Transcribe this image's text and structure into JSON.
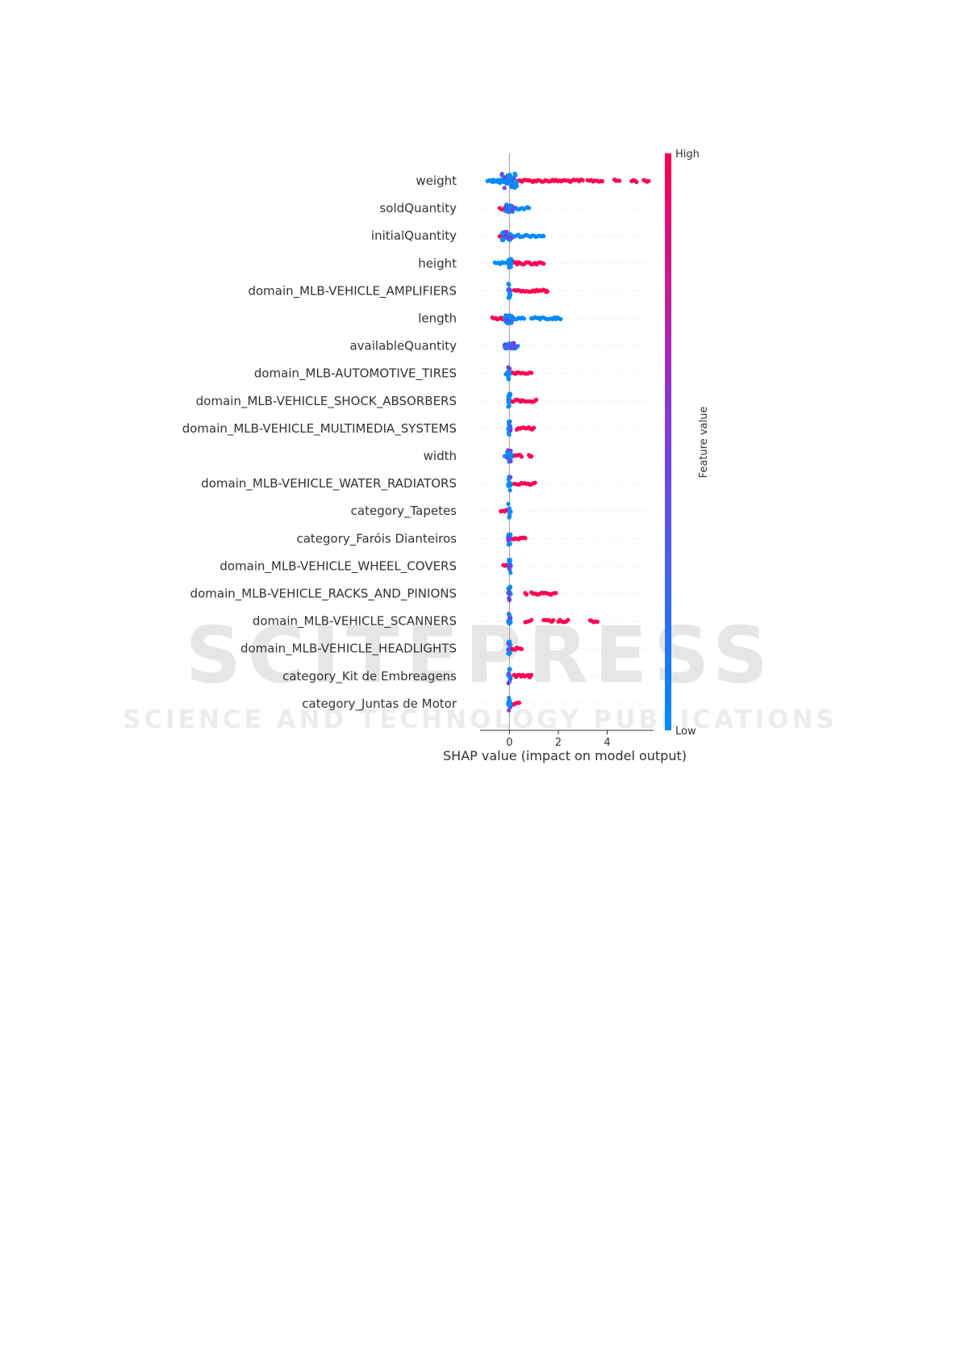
{
  "watermark": {
    "line1": "SCITEPRESS",
    "line2": "SCIENCE AND TECHNOLOGY PUBLICATIONS"
  },
  "colors": {
    "high": "#ff0052",
    "low": "#008bfb",
    "mid": "#7a3fe0",
    "zero_line": "#999999",
    "guide_line": "#e0e0e0",
    "text": "#333333"
  },
  "chart_data": {
    "type": "scatter",
    "subtype": "shap-beeswarm-summary",
    "xlabel": "SHAP value (impact on model output)",
    "xlim": [
      -1.2,
      5.9
    ],
    "xticks": [
      0,
      2,
      4
    ],
    "colorbar": {
      "label": "Feature value",
      "high_label": "High",
      "low_label": "Low"
    },
    "features": [
      {
        "name": "weight",
        "low": [
          [
            -0.9,
            0.1
          ],
          [
            -0.7,
            0.1
          ]
        ],
        "dense": [
          [
            -0.4,
            0.3,
            1.0
          ]
        ],
        "high": [
          [
            0.3,
            3.0
          ],
          [
            3.2,
            3.5
          ],
          [
            3.6,
            3.8
          ],
          [
            4.3,
            4.5
          ],
          [
            5.0,
            5.2
          ],
          [
            5.5,
            5.7
          ]
        ]
      },
      {
        "name": "soldQuantity",
        "low": [
          [
            -0.1,
            0.6
          ],
          [
            0.7,
            0.8
          ]
        ],
        "dense": [
          [
            -0.2,
            0.15,
            0.6
          ]
        ],
        "high": [
          [
            -0.4,
            -0.1
          ]
        ]
      },
      {
        "name": "initialQuantity",
        "low": [
          [
            0.0,
            1.3
          ],
          [
            1.35,
            1.4
          ]
        ],
        "dense": [
          [
            -0.3,
            0.1,
            0.6
          ]
        ],
        "high": [
          [
            -0.4,
            -0.1
          ]
        ]
      },
      {
        "name": "height",
        "low": [
          [
            -0.6,
            0.0
          ]
        ],
        "dense": [
          [
            -0.1,
            0.1,
            0.6
          ]
        ],
        "high": [
          [
            0.1,
            1.4
          ]
        ]
      },
      {
        "name": "domain_MLB-VEHICLE_AMPLIFIERS",
        "low": [
          [
            -0.05,
            0.05
          ]
        ],
        "dense": [
          [
            -0.05,
            0.05,
            1.0
          ]
        ],
        "high": [
          [
            0.2,
            1.4
          ],
          [
            1.5,
            1.55
          ]
        ]
      },
      {
        "name": "length",
        "low": [
          [
            0.0,
            0.6
          ],
          [
            0.9,
            1.6
          ],
          [
            1.7,
            2.1
          ]
        ],
        "dense": [
          [
            -0.2,
            0.1,
            0.7
          ]
        ],
        "high": [
          [
            -0.7,
            0.0
          ]
        ]
      },
      {
        "name": "availableQuantity",
        "low": [
          [
            -0.1,
            0.35
          ]
        ],
        "dense": [
          [
            -0.2,
            0.3,
            0.4
          ]
        ],
        "high": [
          [
            -0.2,
            -0.05
          ]
        ]
      },
      {
        "name": "domain_MLB-AUTOMOTIVE_TIRES",
        "low": [
          [
            -0.15,
            0.05
          ]
        ],
        "dense": [
          [
            -0.05,
            0.05,
            1.0
          ]
        ],
        "high": [
          [
            0.1,
            0.9
          ]
        ]
      },
      {
        "name": "domain_MLB-VEHICLE_SHOCK_ABSORBERS",
        "low": [
          [
            -0.05,
            0.05
          ]
        ],
        "dense": [
          [
            -0.05,
            0.05,
            1.0
          ]
        ],
        "high": [
          [
            0.1,
            1.1
          ]
        ]
      },
      {
        "name": "domain_MLB-VEHICLE_MULTIMEDIA_SYSTEMS",
        "low": [
          [
            -0.05,
            0.05
          ]
        ],
        "dense": [
          [
            -0.05,
            0.05,
            1.0
          ]
        ],
        "high": [
          [
            0.3,
            1.0
          ]
        ]
      },
      {
        "name": "width",
        "low": [
          [
            -0.2,
            0.1
          ]
        ],
        "dense": [
          [
            -0.1,
            0.1,
            0.8
          ]
        ],
        "high": [
          [
            0.2,
            0.5
          ],
          [
            0.8,
            0.9
          ]
        ]
      },
      {
        "name": "domain_MLB-VEHICLE_WATER_RADIATORS",
        "low": [
          [
            -0.05,
            0.05
          ]
        ],
        "dense": [
          [
            -0.05,
            0.05,
            1.0
          ]
        ],
        "high": [
          [
            0.2,
            1.05
          ]
        ]
      },
      {
        "name": "category_Tapetes",
        "low": [
          [
            -0.05,
            0.05
          ]
        ],
        "dense": [
          [
            -0.05,
            0.05,
            1.0
          ]
        ],
        "high": [
          [
            -0.35,
            -0.05
          ]
        ]
      },
      {
        "name": "category_Faróis Dianteiros",
        "low": [
          [
            -0.05,
            0.05
          ]
        ],
        "dense": [
          [
            -0.05,
            0.05,
            1.0
          ]
        ],
        "high": [
          [
            0.1,
            0.65
          ]
        ]
      },
      {
        "name": "domain_MLB-VEHICLE_WHEEL_COVERS",
        "low": [
          [
            -0.05,
            0.05
          ]
        ],
        "dense": [
          [
            -0.05,
            0.05,
            1.0
          ]
        ],
        "high": [
          [
            -0.25,
            -0.05
          ]
        ]
      },
      {
        "name": "domain_MLB-VEHICLE_RACKS_AND_PINIONS",
        "low": [
          [
            -0.05,
            0.05
          ]
        ],
        "dense": [
          [
            -0.05,
            0.05,
            1.0
          ]
        ],
        "high": [
          [
            0.65,
            0.7
          ],
          [
            0.9,
            1.9
          ]
        ]
      },
      {
        "name": "domain_MLB-VEHICLE_SCANNERS",
        "low": [
          [
            -0.05,
            0.05
          ]
        ],
        "dense": [
          [
            -0.05,
            0.05,
            1.0
          ]
        ],
        "high": [
          [
            0.65,
            0.9
          ],
          [
            1.4,
            1.8
          ],
          [
            2.0,
            2.4
          ],
          [
            3.3,
            3.6
          ]
        ]
      },
      {
        "name": "domain_MLB-VEHICLE_HEADLIGHTS",
        "low": [
          [
            -0.05,
            0.05
          ]
        ],
        "dense": [
          [
            -0.05,
            0.05,
            1.0
          ]
        ],
        "high": [
          [
            0.1,
            0.5
          ]
        ]
      },
      {
        "name": "category_Kit de Embreagens",
        "low": [
          [
            -0.05,
            0.05
          ]
        ],
        "dense": [
          [
            -0.05,
            0.05,
            1.0
          ]
        ],
        "high": [
          [
            0.2,
            0.9
          ]
        ]
      },
      {
        "name": "category_Juntas de Motor",
        "low": [
          [
            -0.05,
            0.05
          ]
        ],
        "dense": [
          [
            -0.05,
            0.05,
            1.0
          ]
        ],
        "high": [
          [
            0.1,
            0.4
          ]
        ]
      }
    ]
  }
}
